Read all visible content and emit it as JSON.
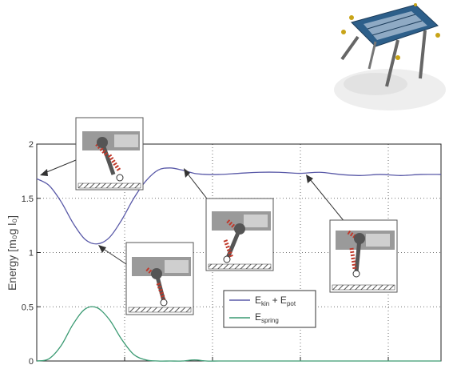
{
  "chart_data": {
    "type": "line",
    "xlabel": "",
    "ylabel": "Energy  [m₀g l₀]",
    "ylim": [
      0,
      2
    ],
    "xlim": [
      0,
      1
    ],
    "yticks": [
      "0",
      "0.5",
      "1",
      "1.5",
      "2"
    ],
    "grid": true,
    "legend_position": "bottom-center",
    "series": [
      {
        "name": "E_kin + E_pot",
        "label_main": "E",
        "label_sub": "kin",
        "label_mid": " + E",
        "label_sub2": "pot",
        "color": "#5a5aa8",
        "x": [
          0,
          0.03,
          0.06,
          0.09,
          0.12,
          0.15,
          0.18,
          0.21,
          0.24,
          0.27,
          0.3,
          0.33,
          0.36,
          0.39,
          0.42,
          0.45,
          0.5,
          0.55,
          0.6,
          0.65,
          0.7,
          0.75,
          0.8,
          0.85,
          0.9,
          0.95,
          1.0
        ],
        "values": [
          1.68,
          1.62,
          1.47,
          1.27,
          1.12,
          1.08,
          1.14,
          1.3,
          1.5,
          1.66,
          1.76,
          1.78,
          1.76,
          1.73,
          1.72,
          1.72,
          1.73,
          1.74,
          1.74,
          1.73,
          1.74,
          1.72,
          1.71,
          1.72,
          1.71,
          1.72,
          1.72
        ]
      },
      {
        "name": "E_spring",
        "label_main": "E",
        "label_sub": "spring",
        "color": "#3a9a72",
        "x": [
          0,
          0.03,
          0.06,
          0.09,
          0.12,
          0.15,
          0.18,
          0.21,
          0.24,
          0.27,
          0.3,
          0.33,
          0.36,
          0.39,
          0.42,
          0.45,
          0.5,
          0.55,
          0.6,
          0.65,
          0.7,
          0.75,
          0.8,
          0.85,
          0.9,
          0.95,
          1.0
        ],
        "values": [
          0,
          0.02,
          0.14,
          0.34,
          0.48,
          0.49,
          0.38,
          0.2,
          0.06,
          0.01,
          0,
          0,
          0,
          0.01,
          0,
          0,
          0,
          0,
          0,
          0,
          0,
          0,
          0,
          0,
          0,
          0,
          0
        ]
      }
    ],
    "annotations": [
      {
        "name": "inset-start",
        "x": 0.0,
        "y": 1.68
      },
      {
        "name": "inset-min",
        "x": 0.165,
        "y": 1.08
      },
      {
        "name": "inset-peak",
        "x": 0.38,
        "y": 1.78
      },
      {
        "name": "inset-steady",
        "x": 0.71,
        "y": 1.72
      }
    ]
  }
}
